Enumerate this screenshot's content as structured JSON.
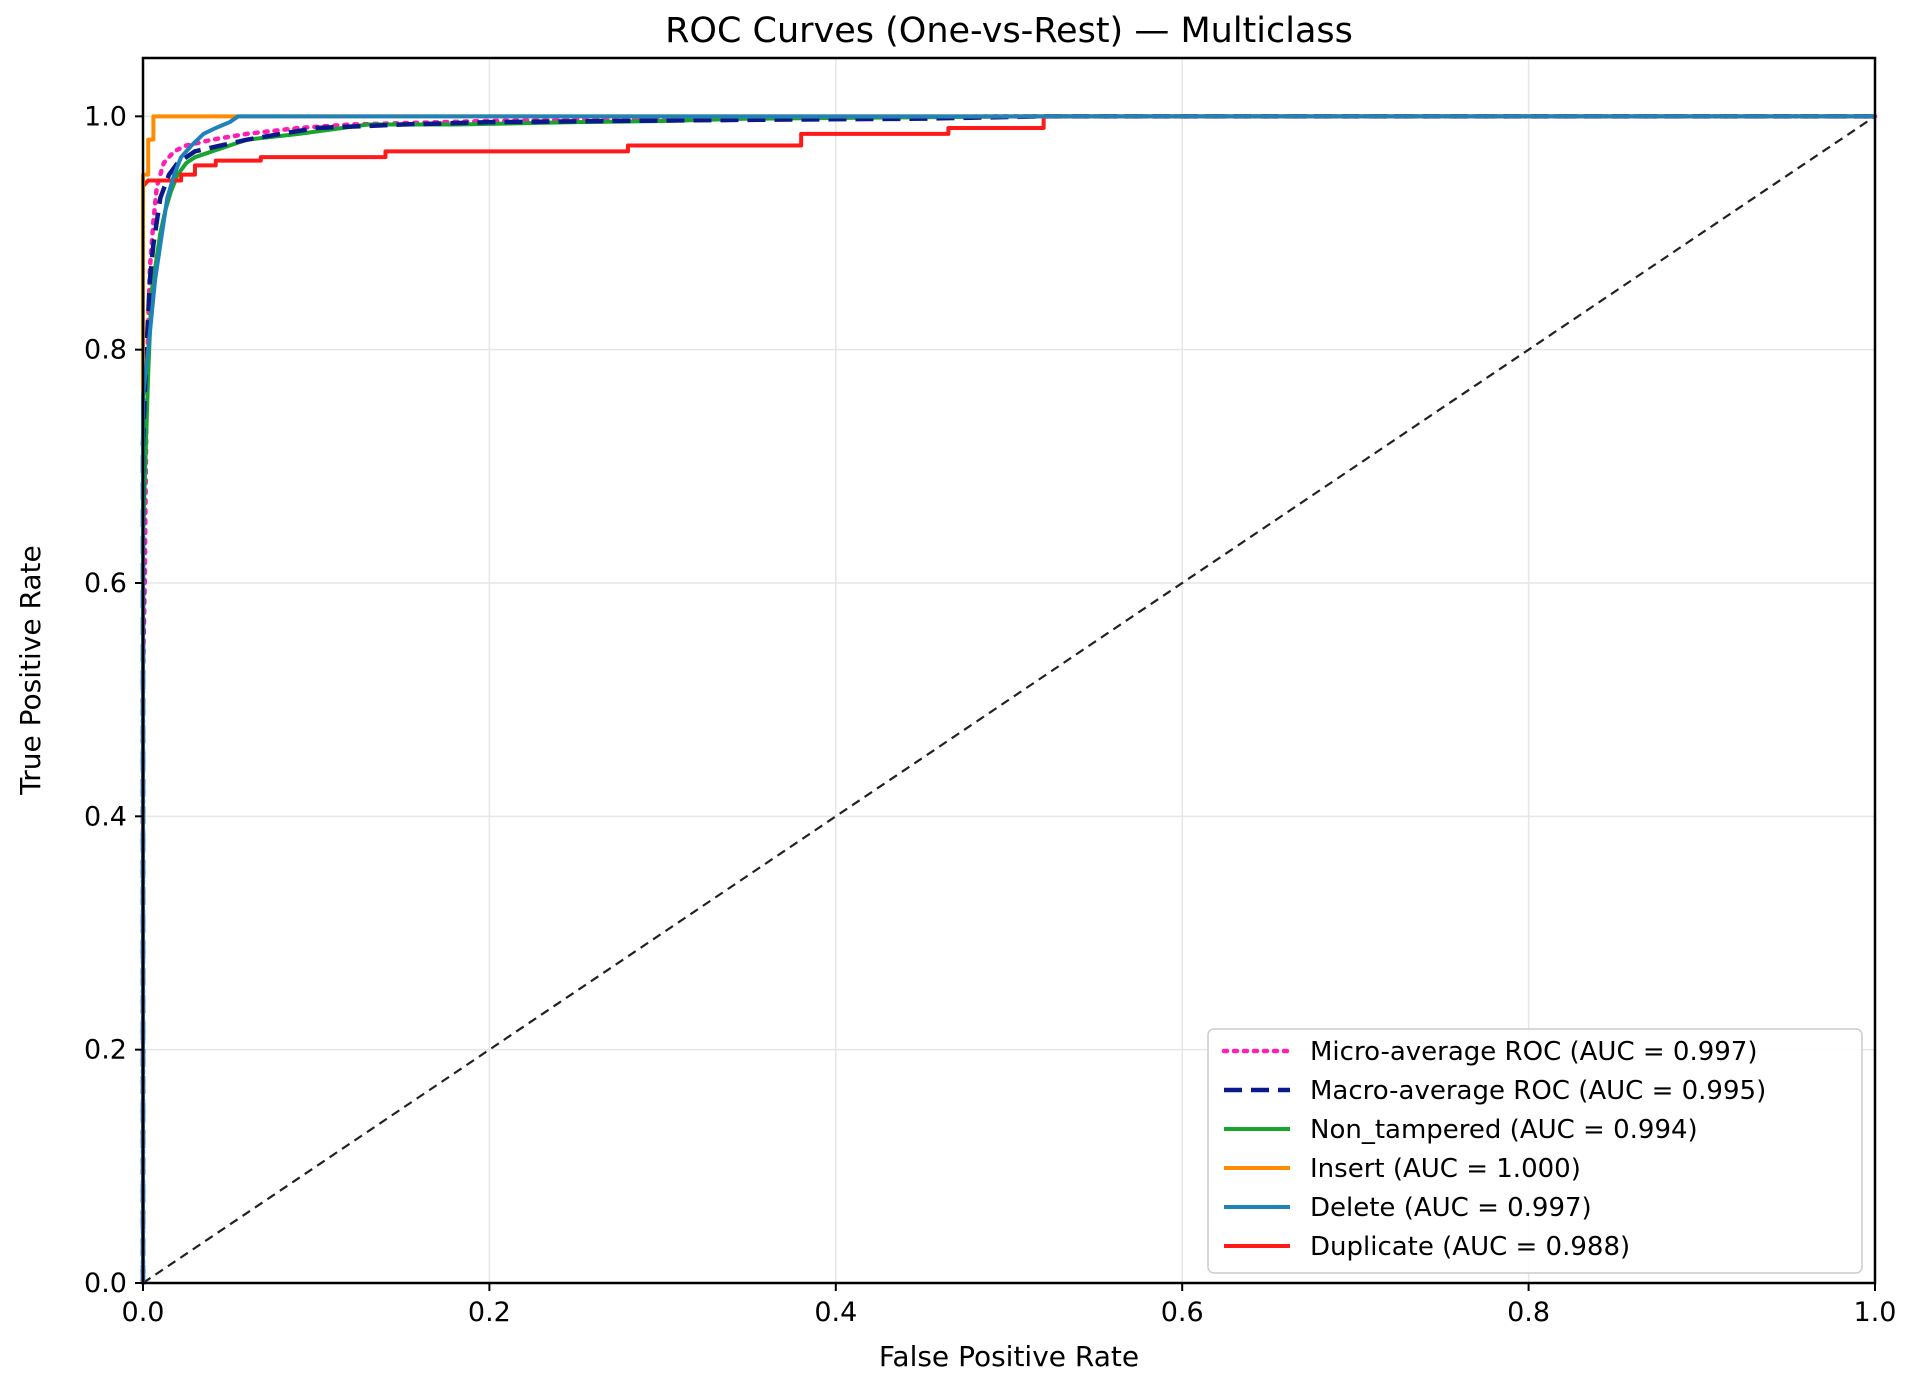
{
  "chart_data": {
    "type": "line",
    "title": "ROC Curves (One-vs-Rest) — Multiclass",
    "xlabel": "False Positive Rate",
    "ylabel": "True Positive Rate",
    "xlim": [
      0.0,
      1.0
    ],
    "ylim": [
      0.0,
      1.05
    ],
    "xticks": [
      0.0,
      0.2,
      0.4,
      0.6,
      0.8,
      1.0
    ],
    "xtick_labels": [
      "0.0",
      "0.2",
      "0.4",
      "0.6",
      "0.8",
      "1.0"
    ],
    "yticks": [
      0.0,
      0.2,
      0.4,
      0.6,
      0.8,
      1.0
    ],
    "ytick_labels": [
      "0.0",
      "0.2",
      "0.4",
      "0.6",
      "0.8",
      "1.0"
    ],
    "grid": true,
    "legend_position": "lower-right",
    "series": [
      {
        "name": "Micro-average ROC (AUC = 0.997)",
        "color": "#ff1fb4",
        "style": "dotted",
        "x": [
          0.0,
          0.0,
          0.001,
          0.002,
          0.003,
          0.004,
          0.006,
          0.008,
          0.012,
          0.018,
          0.025,
          0.04,
          0.06,
          0.09,
          0.12,
          0.2,
          0.3,
          0.5,
          1.0
        ],
        "y": [
          0.0,
          0.52,
          0.6,
          0.75,
          0.82,
          0.87,
          0.91,
          0.94,
          0.96,
          0.97,
          0.975,
          0.98,
          0.985,
          0.99,
          0.993,
          0.996,
          0.998,
          1.0,
          1.0
        ]
      },
      {
        "name": "Macro-average ROC (AUC = 0.995)",
        "color": "#0a1a8a",
        "style": "dashed",
        "x": [
          0.0,
          0.0,
          0.002,
          0.004,
          0.006,
          0.008,
          0.01,
          0.015,
          0.02,
          0.03,
          0.045,
          0.06,
          0.08,
          0.1,
          0.15,
          0.2,
          0.27,
          0.35,
          0.45,
          0.52,
          1.0
        ],
        "y": [
          0.0,
          0.72,
          0.8,
          0.86,
          0.89,
          0.91,
          0.93,
          0.95,
          0.96,
          0.97,
          0.975,
          0.98,
          0.985,
          0.99,
          0.993,
          0.995,
          0.996,
          0.997,
          0.998,
          1.0,
          1.0
        ]
      },
      {
        "name": "Non_tampered (AUC = 0.994)",
        "color": "#18a52e",
        "style": "solid",
        "x": [
          0.0,
          0.0,
          0.003,
          0.005,
          0.008,
          0.01,
          0.013,
          0.016,
          0.02,
          0.025,
          0.03,
          0.04,
          0.05,
          0.06,
          0.09,
          0.115,
          0.13,
          0.18,
          0.25,
          0.3,
          0.35,
          0.52,
          1.0
        ],
        "y": [
          0.0,
          0.64,
          0.78,
          0.85,
          0.88,
          0.9,
          0.92,
          0.935,
          0.95,
          0.96,
          0.965,
          0.97,
          0.975,
          0.98,
          0.985,
          0.99,
          0.993,
          0.993,
          0.995,
          0.996,
          0.998,
          1.0,
          1.0
        ]
      },
      {
        "name": "Insert (AUC = 1.000)",
        "color": "#ff8c00",
        "style": "solid",
        "x": [
          0.0,
          0.0,
          0.003,
          0.003,
          0.006,
          0.006,
          0.055,
          1.0
        ],
        "y": [
          0.0,
          0.95,
          0.95,
          0.98,
          0.98,
          1.0,
          1.0,
          1.0
        ]
      },
      {
        "name": "Delete (AUC = 0.997)",
        "color": "#1f82b8",
        "style": "solid",
        "x": [
          0.0,
          0.0,
          0.003,
          0.005,
          0.007,
          0.009,
          0.011,
          0.014,
          0.018,
          0.022,
          0.028,
          0.035,
          0.042,
          0.05,
          0.055,
          0.1,
          0.52,
          1.0
        ],
        "y": [
          0.0,
          0.76,
          0.8,
          0.83,
          0.86,
          0.88,
          0.9,
          0.93,
          0.95,
          0.965,
          0.975,
          0.985,
          0.99,
          0.995,
          1.0,
          1.0,
          1.0,
          1.0
        ]
      },
      {
        "name": "Duplicate (AUC = 0.988)",
        "color": "#ff1a1a",
        "style": "solid",
        "x": [
          0.0,
          0.0,
          0.003,
          0.022,
          0.022,
          0.03,
          0.03,
          0.042,
          0.042,
          0.068,
          0.068,
          0.14,
          0.14,
          0.28,
          0.28,
          0.38,
          0.38,
          0.465,
          0.465,
          0.52,
          0.52,
          1.0
        ],
        "y": [
          0.0,
          0.94,
          0.945,
          0.945,
          0.95,
          0.95,
          0.958,
          0.958,
          0.962,
          0.962,
          0.965,
          0.965,
          0.97,
          0.97,
          0.975,
          0.975,
          0.985,
          0.985,
          0.99,
          0.99,
          1.0,
          1.0
        ]
      }
    ],
    "reference_line": {
      "x": [
        0.0,
        1.0
      ],
      "y": [
        0.0,
        1.0
      ],
      "color": "#222222",
      "style": "dashed"
    }
  }
}
